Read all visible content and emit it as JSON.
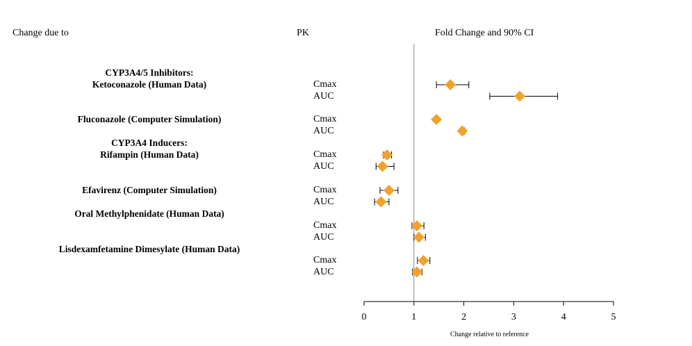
{
  "headers": {
    "change_due_to": "Change due to",
    "pk": "PK",
    "fold_change": "Fold Change and 90% CI"
  },
  "chart_data": {
    "type": "scatter",
    "subtype": "forest-plot",
    "xlabel": "Change relative to reference",
    "xlim": [
      0,
      5
    ],
    "xticks": [
      "0",
      "1",
      "2",
      "3",
      "4",
      "5"
    ],
    "reference_line": 1,
    "marker_color": "#F2A22C",
    "marker": "diamond",
    "groups": [
      {
        "lines": [
          "CYP3A4/5 Inhibitors:",
          "Ketoconazole (Human Data)"
        ],
        "rows": [
          {
            "pk": "Cmax",
            "value": 1.73,
            "lo": 1.45,
            "hi": 2.1
          },
          {
            "pk": "AUC",
            "value": 3.12,
            "lo": 2.52,
            "hi": 3.88
          }
        ]
      },
      {
        "lines": [
          "Fluconazole (Computer Simulation)"
        ],
        "rows": [
          {
            "pk": "Cmax",
            "value": 1.45,
            "lo": 1.41,
            "hi": 1.49
          },
          {
            "pk": "AUC",
            "value": 1.97,
            "lo": 1.93,
            "hi": 2.02
          }
        ]
      },
      {
        "lines": [
          "CYP3A4 Inducers:",
          "Rifampin  (Human Data)"
        ],
        "rows": [
          {
            "pk": "Cmax",
            "value": 0.46,
            "lo": 0.39,
            "hi": 0.55
          },
          {
            "pk": "AUC",
            "value": 0.37,
            "lo": 0.24,
            "hi": 0.6
          }
        ]
      },
      {
        "lines": [
          "Efavirenz (Computer Simulation)"
        ],
        "rows": [
          {
            "pk": "Cmax",
            "value": 0.5,
            "lo": 0.32,
            "hi": 0.68
          },
          {
            "pk": "AUC",
            "value": 0.34,
            "lo": 0.21,
            "hi": 0.5
          }
        ]
      },
      {
        "lines": [
          "Oral Methylphenidate (Human Data)"
        ],
        "rows": [
          {
            "pk": "Cmax",
            "value": 1.06,
            "lo": 0.96,
            "hi": 1.2
          },
          {
            "pk": "AUC",
            "value": 1.1,
            "lo": 1.0,
            "hi": 1.23
          }
        ]
      },
      {
        "lines": [
          "Lisdexamfetamine Dimesylate (Human Data)"
        ],
        "rows": [
          {
            "pk": "Cmax",
            "value": 1.19,
            "lo": 1.07,
            "hi": 1.32
          },
          {
            "pk": "AUC",
            "value": 1.06,
            "lo": 0.97,
            "hi": 1.16
          }
        ]
      }
    ]
  }
}
